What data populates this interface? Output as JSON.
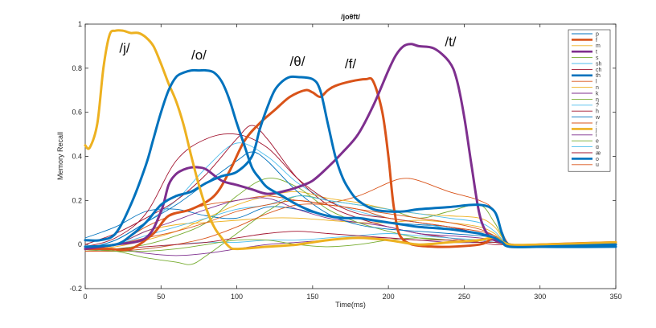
{
  "chart_data": {
    "type": "line",
    "title": "/joθft/",
    "xlabel": "Time(ms)",
    "ylabel": "Memory Recall",
    "xlim": [
      0,
      350
    ],
    "ylim": [
      -0.2,
      1
    ],
    "xticks": [
      0,
      50,
      100,
      150,
      200,
      250,
      300,
      350
    ],
    "yticks": [
      -0.2,
      0,
      0.2,
      0.4,
      0.6,
      0.8,
      1
    ],
    "xtick_labels": [
      "0",
      "50",
      "100",
      "150",
      "200",
      "250",
      "300",
      "350"
    ],
    "ytick_labels": [
      "-0.2",
      "0",
      "0.2",
      "0.4",
      "0.6",
      "0.8",
      "1"
    ],
    "grid": false,
    "legend_position": "top-right",
    "annotations": [
      {
        "text": "/j/",
        "x": 26,
        "y": 0.87
      },
      {
        "text": "/o/",
        "x": 75,
        "y": 0.84
      },
      {
        "text": "/θ/",
        "x": 140,
        "y": 0.81
      },
      {
        "text": "/f/",
        "x": 175,
        "y": 0.8
      },
      {
        "text": "/t/",
        "x": 241,
        "y": 0.9
      }
    ],
    "series": [
      {
        "name": "p",
        "color": "#0072bd",
        "bold": false,
        "x": [
          0,
          20,
          40,
          60,
          80,
          100,
          120,
          140,
          160,
          180,
          200,
          220,
          240,
          260,
          270,
          280,
          300,
          350
        ],
        "y": [
          0.03,
          0.08,
          0.15,
          0.16,
          0.13,
          0.12,
          0.17,
          0.16,
          0.13,
          0.12,
          0.1,
          0.09,
          0.08,
          0.05,
          0.04,
          0.0,
          -0.01,
          -0.01
        ]
      },
      {
        "name": "f",
        "color": "#d95319",
        "bold": true,
        "x": [
          0,
          15,
          30,
          45,
          55,
          70,
          85,
          95,
          105,
          115,
          125,
          135,
          145,
          150,
          155,
          160,
          165,
          175,
          185,
          190,
          196,
          200,
          204,
          210,
          230,
          260,
          270,
          280,
          300,
          350
        ],
        "y": [
          -0.02,
          -0.02,
          -0.02,
          0.05,
          0.13,
          0.16,
          0.22,
          0.33,
          0.47,
          0.55,
          0.61,
          0.67,
          0.7,
          0.69,
          0.67,
          0.7,
          0.72,
          0.74,
          0.75,
          0.74,
          0.6,
          0.4,
          0.15,
          0.02,
          -0.01,
          0.0,
          0.03,
          -0.01,
          0.0,
          0.01
        ]
      },
      {
        "name": "m",
        "color": "#edb120",
        "bold": false,
        "x": [
          0,
          20,
          40,
          60,
          80,
          100,
          120,
          140,
          160,
          180,
          200,
          220,
          240,
          260,
          270,
          280,
          300,
          350
        ],
        "y": [
          -0.01,
          0.0,
          0.06,
          0.09,
          0.1,
          0.11,
          0.12,
          0.12,
          0.11,
          0.1,
          0.1,
          0.11,
          0.1,
          0.08,
          0.05,
          0.0,
          0.0,
          0.01
        ]
      },
      {
        "name": "t",
        "color": "#7e2f8e",
        "bold": true,
        "x": [
          0,
          20,
          40,
          50,
          55,
          60,
          65,
          70,
          75,
          80,
          90,
          100,
          110,
          120,
          130,
          140,
          150,
          160,
          170,
          180,
          190,
          200,
          205,
          210,
          215,
          220,
          230,
          240,
          245,
          250,
          255,
          260,
          265,
          270,
          275,
          280,
          300,
          350
        ],
        "y": [
          -0.02,
          0.0,
          0.03,
          0.15,
          0.27,
          0.32,
          0.34,
          0.35,
          0.35,
          0.34,
          0.29,
          0.27,
          0.25,
          0.23,
          0.24,
          0.26,
          0.29,
          0.35,
          0.42,
          0.5,
          0.63,
          0.79,
          0.86,
          0.9,
          0.91,
          0.9,
          0.89,
          0.83,
          0.75,
          0.58,
          0.35,
          0.14,
          0.05,
          0.02,
          0.01,
          0.0,
          -0.01,
          0.0
        ]
      },
      {
        "name": "s",
        "color": "#77ac30",
        "bold": false,
        "x": [
          0,
          20,
          40,
          60,
          70,
          80,
          100,
          120,
          140,
          160,
          180,
          200,
          220,
          240,
          260,
          270,
          280,
          300,
          350
        ],
        "y": [
          -0.02,
          -0.03,
          -0.06,
          -0.08,
          -0.09,
          -0.05,
          0.05,
          0.15,
          0.22,
          0.2,
          0.18,
          0.16,
          0.12,
          0.15,
          0.18,
          0.1,
          0.0,
          0.0,
          0.0
        ]
      },
      {
        "name": "sh",
        "color": "#4dbeee",
        "bold": false,
        "x": [
          0,
          20,
          40,
          60,
          80,
          100,
          120,
          140,
          160,
          180,
          200,
          220,
          240,
          260,
          270,
          280,
          300,
          350
        ],
        "y": [
          -0.02,
          0.02,
          0.1,
          0.2,
          0.35,
          0.46,
          0.4,
          0.28,
          0.2,
          0.15,
          0.12,
          0.1,
          0.07,
          0.05,
          0.03,
          0.0,
          0.0,
          0.0
        ]
      },
      {
        "name": "ch",
        "color": "#a2142f",
        "bold": false,
        "x": [
          0,
          20,
          40,
          60,
          80,
          100,
          110,
          120,
          140,
          160,
          180,
          200,
          220,
          240,
          260,
          270,
          280,
          300,
          350
        ],
        "y": [
          0.0,
          0.05,
          0.12,
          0.2,
          0.32,
          0.48,
          0.54,
          0.48,
          0.3,
          0.18,
          0.12,
          0.08,
          0.05,
          0.03,
          0.01,
          0.0,
          0.0,
          0.0,
          0.0
        ]
      },
      {
        "name": "th",
        "color": "#0072bd",
        "bold": true,
        "x": [
          0,
          20,
          30,
          40,
          50,
          60,
          70,
          80,
          90,
          100,
          110,
          115,
          120,
          125,
          130,
          135,
          140,
          150,
          155,
          160,
          165,
          170,
          175,
          180,
          190,
          200,
          210,
          220,
          240,
          260,
          270,
          275,
          280,
          300,
          350
        ],
        "y": [
          -0.01,
          0.0,
          0.04,
          0.1,
          0.18,
          0.22,
          0.24,
          0.28,
          0.31,
          0.33,
          0.4,
          0.52,
          0.62,
          0.7,
          0.74,
          0.76,
          0.76,
          0.75,
          0.7,
          0.55,
          0.4,
          0.3,
          0.24,
          0.2,
          0.16,
          0.15,
          0.15,
          0.16,
          0.17,
          0.18,
          0.15,
          0.05,
          0.0,
          -0.01,
          -0.01
        ]
      },
      {
        "name": "l",
        "color": "#d95319",
        "bold": false,
        "x": [
          0,
          20,
          40,
          60,
          80,
          100,
          120,
          140,
          160,
          180,
          200,
          210,
          220,
          240,
          260,
          270,
          280,
          300,
          350
        ],
        "y": [
          -0.02,
          0.0,
          0.08,
          0.14,
          0.18,
          0.2,
          0.22,
          0.2,
          0.19,
          0.22,
          0.28,
          0.3,
          0.29,
          0.24,
          0.2,
          0.15,
          0.0,
          0.0,
          0.0
        ]
      },
      {
        "name": "n",
        "color": "#edb120",
        "bold": false,
        "x": [
          0,
          20,
          40,
          60,
          80,
          100,
          120,
          140,
          160,
          180,
          200,
          220,
          240,
          260,
          270,
          280,
          300,
          350
        ],
        "y": [
          -0.02,
          -0.01,
          0.02,
          0.06,
          0.12,
          0.18,
          0.22,
          0.24,
          0.21,
          0.19,
          0.16,
          0.14,
          0.13,
          0.12,
          0.08,
          0.0,
          0.0,
          0.0
        ]
      },
      {
        "name": "k",
        "color": "#7e2f8e",
        "bold": false,
        "x": [
          0,
          20,
          40,
          60,
          80,
          100,
          120,
          140,
          160,
          180,
          200,
          220,
          240,
          260,
          270,
          280,
          300,
          350
        ],
        "y": [
          -0.02,
          0.0,
          0.06,
          0.11,
          0.16,
          0.2,
          0.21,
          0.16,
          0.12,
          0.1,
          0.08,
          0.05,
          0.04,
          0.03,
          0.02,
          0.0,
          0.0,
          0.0
        ]
      },
      {
        "name": "ŋ",
        "color": "#77ac30",
        "bold": false,
        "x": [
          0,
          20,
          40,
          60,
          80,
          100,
          120,
          140,
          160,
          180,
          200,
          220,
          240,
          260,
          270,
          280,
          300,
          350
        ],
        "y": [
          -0.03,
          -0.02,
          0.0,
          0.04,
          0.1,
          0.22,
          0.3,
          0.26,
          0.16,
          0.1,
          0.06,
          0.03,
          0.02,
          0.01,
          0.02,
          0.0,
          0.0,
          0.0
        ]
      },
      {
        "name": "?",
        "color": "#4dbeee",
        "bold": false,
        "x": [
          0,
          20,
          40,
          60,
          80,
          100,
          120,
          140,
          160,
          180,
          200,
          220,
          240,
          260,
          270,
          280,
          300,
          350
        ],
        "y": [
          -0.02,
          -0.03,
          -0.02,
          0.0,
          0.01,
          0.01,
          0.02,
          0.02,
          0.03,
          0.04,
          0.05,
          0.04,
          0.03,
          0.02,
          0.01,
          0.0,
          0.0,
          0.0
        ]
      },
      {
        "name": "h",
        "color": "#a2142f",
        "bold": false,
        "x": [
          0,
          20,
          40,
          60,
          80,
          100,
          120,
          140,
          160,
          180,
          200,
          220,
          240,
          260,
          270,
          280,
          300,
          350
        ],
        "y": [
          -0.01,
          0.03,
          0.14,
          0.38,
          0.48,
          0.5,
          0.44,
          0.3,
          0.2,
          0.14,
          0.12,
          0.1,
          0.08,
          0.05,
          0.03,
          0.0,
          0.0,
          0.0
        ]
      },
      {
        "name": "w",
        "color": "#0072bd",
        "bold": false,
        "x": [
          0,
          20,
          40,
          60,
          80,
          100,
          110,
          120,
          140,
          160,
          180,
          200,
          220,
          240,
          260,
          270,
          280,
          300,
          350
        ],
        "y": [
          -0.02,
          0.02,
          0.1,
          0.18,
          0.28,
          0.38,
          0.42,
          0.38,
          0.24,
          0.14,
          0.09,
          0.07,
          0.06,
          0.05,
          0.04,
          0.03,
          0.0,
          0.0,
          0.0
        ]
      },
      {
        "name": "r",
        "color": "#d95319",
        "bold": false,
        "x": [
          0,
          20,
          40,
          60,
          80,
          100,
          120,
          140,
          160,
          180,
          200,
          220,
          240,
          260,
          270,
          280,
          300,
          350
        ],
        "y": [
          -0.03,
          -0.03,
          -0.02,
          0.0,
          0.03,
          0.08,
          0.14,
          0.18,
          0.18,
          0.16,
          0.14,
          0.12,
          0.1,
          0.07,
          0.04,
          0.0,
          0.0,
          0.0
        ]
      },
      {
        "name": "j",
        "color": "#edb120",
        "bold": true,
        "x": [
          0,
          3,
          8,
          12,
          16,
          20,
          25,
          30,
          35,
          40,
          45,
          50,
          55,
          60,
          65,
          70,
          75,
          80,
          85,
          90,
          95,
          100,
          120,
          140,
          160,
          180,
          200,
          220,
          240,
          260,
          270,
          280,
          300,
          350
        ],
        "y": [
          0.45,
          0.44,
          0.55,
          0.8,
          0.95,
          0.97,
          0.97,
          0.96,
          0.96,
          0.94,
          0.9,
          0.82,
          0.73,
          0.65,
          0.54,
          0.4,
          0.27,
          0.16,
          0.08,
          0.03,
          -0.01,
          -0.02,
          -0.01,
          0.0,
          0.02,
          0.03,
          0.02,
          0.0,
          0.01,
          0.02,
          0.03,
          0.0,
          0.0,
          0.01
        ]
      },
      {
        "name": "i",
        "color": "#7e2f8e",
        "bold": false,
        "x": [
          0,
          20,
          40,
          60,
          80,
          100,
          120,
          140,
          160,
          180,
          200,
          220,
          240,
          260,
          270,
          280,
          300,
          350
        ],
        "y": [
          -0.02,
          -0.02,
          -0.04,
          -0.05,
          -0.04,
          -0.02,
          0.0,
          0.01,
          0.02,
          0.03,
          0.03,
          0.02,
          0.01,
          0.01,
          0.02,
          0.0,
          0.0,
          0.0
        ]
      },
      {
        "name": "e",
        "color": "#77ac30",
        "bold": false,
        "x": [
          0,
          20,
          40,
          60,
          80,
          100,
          120,
          140,
          160,
          180,
          200,
          220,
          240,
          260,
          270,
          280,
          300,
          350
        ],
        "y": [
          -0.02,
          -0.03,
          -0.03,
          -0.02,
          0.0,
          0.02,
          0.02,
          0.0,
          -0.01,
          0.0,
          0.02,
          0.03,
          0.02,
          0.01,
          0.01,
          0.0,
          0.0,
          0.0
        ]
      },
      {
        "name": "ɑ",
        "color": "#4dbeee",
        "bold": false,
        "x": [
          0,
          20,
          40,
          60,
          80,
          100,
          120,
          140,
          160,
          180,
          200,
          220,
          240,
          260,
          270,
          280,
          300,
          350
        ],
        "y": [
          -0.02,
          0.0,
          0.04,
          0.08,
          0.12,
          0.16,
          0.18,
          0.22,
          0.2,
          0.18,
          0.16,
          0.14,
          0.12,
          0.1,
          0.06,
          0.0,
          0.0,
          0.0
        ]
      },
      {
        "name": "æ",
        "color": "#a2142f",
        "bold": false,
        "x": [
          0,
          20,
          40,
          60,
          80,
          100,
          120,
          140,
          160,
          180,
          200,
          220,
          240,
          260,
          270,
          280,
          300,
          350
        ],
        "y": [
          -0.02,
          -0.02,
          -0.01,
          0.0,
          0.01,
          0.03,
          0.05,
          0.06,
          0.05,
          0.04,
          0.03,
          0.02,
          0.02,
          0.01,
          0.01,
          0.0,
          0.0,
          0.0
        ]
      },
      {
        "name": "o",
        "color": "#0072bd",
        "bold": true,
        "x": [
          0,
          10,
          20,
          30,
          40,
          45,
          50,
          55,
          60,
          65,
          70,
          75,
          80,
          85,
          90,
          95,
          100,
          105,
          110,
          115,
          120,
          130,
          140,
          150,
          160,
          170,
          180,
          190,
          200,
          210,
          220,
          240,
          250,
          260,
          265,
          270,
          275,
          280,
          300,
          350
        ],
        "y": [
          0.02,
          0.02,
          0.05,
          0.18,
          0.36,
          0.48,
          0.6,
          0.7,
          0.76,
          0.78,
          0.79,
          0.79,
          0.79,
          0.78,
          0.74,
          0.66,
          0.55,
          0.45,
          0.35,
          0.3,
          0.26,
          0.22,
          0.18,
          0.15,
          0.13,
          0.12,
          0.12,
          0.11,
          0.1,
          0.09,
          0.08,
          0.07,
          0.06,
          0.05,
          0.04,
          0.03,
          0.01,
          -0.01,
          -0.01,
          0.0
        ]
      },
      {
        "name": "u",
        "color": "#d95319",
        "bold": false,
        "x": [
          0,
          20,
          40,
          60,
          80,
          100,
          120,
          140,
          160,
          180,
          200,
          220,
          240,
          260,
          270,
          280,
          300,
          350
        ],
        "y": [
          -0.02,
          0.0,
          0.03,
          0.06,
          0.1,
          0.15,
          0.18,
          0.2,
          0.18,
          0.16,
          0.12,
          0.1,
          0.08,
          0.06,
          0.04,
          0.0,
          0.0,
          0.0
        ]
      }
    ]
  }
}
